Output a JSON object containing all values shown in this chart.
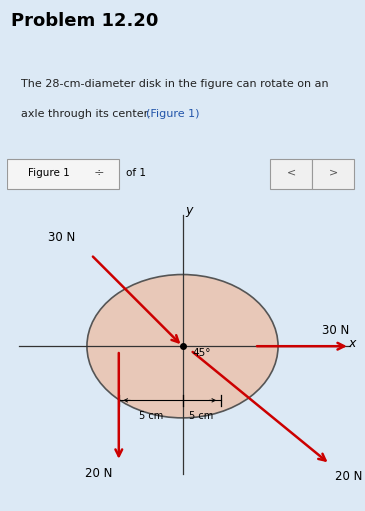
{
  "bg_color": "#dce9f5",
  "title": "Problem 12.20",
  "problem_text_line1": "The 28-cm-diameter disk in the figure can rotate on an",
  "problem_text_line2": "axle through its center. ",
  "figure_link": "(Figure 1)",
  "figure_label": "Figure 1",
  "figure_of": "of 1",
  "disk_color": "#e8c8b8",
  "disk_edge_color": "#555555",
  "axis_color": "#333333",
  "arrow_color": "#cc0000",
  "angle_label": "45°",
  "dim_label_left": "5 cm",
  "dim_label_right": "5 cm",
  "label_30N_diag": "30 N",
  "label_30N_horiz": "30 N",
  "label_20N_down": "20 N",
  "label_20N_diag": "20 N"
}
